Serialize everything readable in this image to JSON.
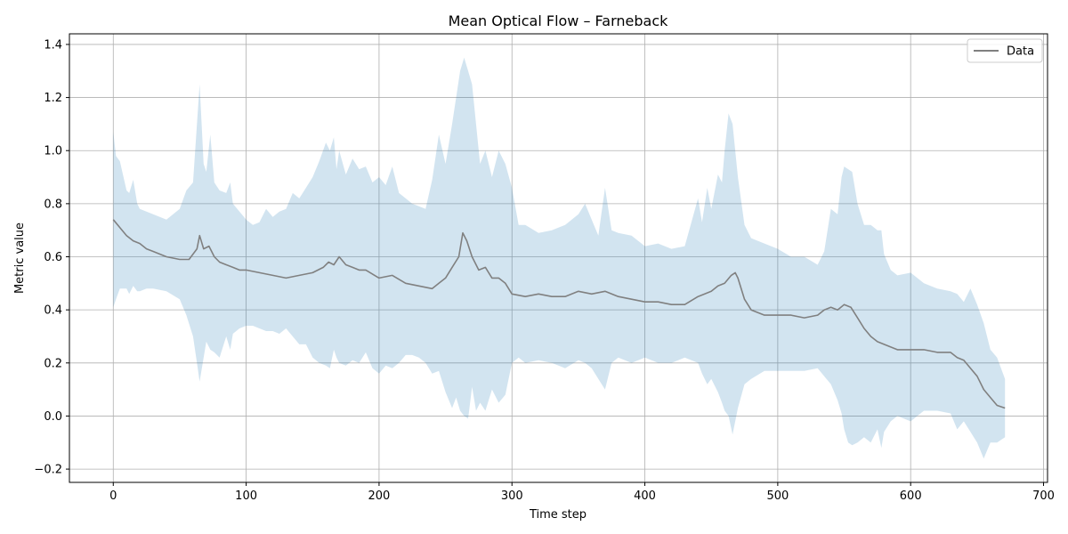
{
  "chart_data": {
    "type": "line",
    "title": "Mean Optical Flow – Farneback",
    "xlabel": "Time step",
    "ylabel": "Metric value",
    "xlim": [
      -33,
      703
    ],
    "ylim": [
      -0.25,
      1.44
    ],
    "xticks": [
      0,
      100,
      200,
      300,
      400,
      500,
      600,
      700
    ],
    "yticks": [
      -0.2,
      0.0,
      0.2,
      0.4,
      0.6,
      0.8,
      1.0,
      1.2,
      1.4
    ],
    "xtick_labels": [
      "0",
      "100",
      "200",
      "300",
      "400",
      "500",
      "600",
      "700"
    ],
    "ytick_labels": [
      "−0.2",
      "0.0",
      "0.2",
      "0.4",
      "0.6",
      "0.8",
      "1.0",
      "1.2",
      "1.4"
    ],
    "grid": true,
    "legend_position": "top-right",
    "series": [
      {
        "name": "Data",
        "color": "#808080",
        "x": [
          0,
          5,
          10,
          15,
          20,
          25,
          30,
          40,
          50,
          57,
          60,
          63,
          65,
          68,
          72,
          76,
          80,
          85,
          90,
          95,
          100,
          110,
          120,
          130,
          140,
          150,
          158,
          162,
          166,
          170,
          175,
          180,
          185,
          190,
          200,
          210,
          220,
          230,
          240,
          245,
          250,
          255,
          260,
          263,
          266,
          270,
          275,
          280,
          285,
          290,
          295,
          300,
          310,
          320,
          330,
          340,
          350,
          360,
          370,
          380,
          390,
          400,
          410,
          420,
          430,
          440,
          445,
          450,
          455,
          460,
          465,
          468,
          470,
          475,
          480,
          490,
          500,
          510,
          520,
          530,
          535,
          540,
          545,
          550,
          555,
          560,
          565,
          570,
          575,
          580,
          585,
          590,
          600,
          610,
          620,
          630,
          635,
          640,
          645,
          650,
          655,
          660,
          665,
          671
        ],
        "values": [
          0.74,
          0.71,
          0.68,
          0.66,
          0.65,
          0.63,
          0.62,
          0.6,
          0.59,
          0.59,
          0.61,
          0.63,
          0.68,
          0.63,
          0.64,
          0.6,
          0.58,
          0.57,
          0.56,
          0.55,
          0.55,
          0.54,
          0.53,
          0.52,
          0.53,
          0.54,
          0.56,
          0.58,
          0.57,
          0.6,
          0.57,
          0.56,
          0.55,
          0.55,
          0.52,
          0.53,
          0.5,
          0.49,
          0.48,
          0.5,
          0.52,
          0.56,
          0.6,
          0.69,
          0.66,
          0.6,
          0.55,
          0.56,
          0.52,
          0.52,
          0.5,
          0.46,
          0.45,
          0.46,
          0.45,
          0.45,
          0.47,
          0.46,
          0.47,
          0.45,
          0.44,
          0.43,
          0.43,
          0.42,
          0.42,
          0.45,
          0.46,
          0.47,
          0.49,
          0.5,
          0.53,
          0.54,
          0.52,
          0.44,
          0.4,
          0.38,
          0.38,
          0.38,
          0.37,
          0.38,
          0.4,
          0.41,
          0.4,
          0.42,
          0.41,
          0.37,
          0.33,
          0.3,
          0.28,
          0.27,
          0.26,
          0.25,
          0.25,
          0.25,
          0.24,
          0.24,
          0.22,
          0.21,
          0.18,
          0.15,
          0.1,
          0.07,
          0.04,
          0.03
        ]
      }
    ],
    "band": {
      "color": "#1f77b4",
      "opacity": 0.2,
      "x": [
        0,
        2,
        5,
        10,
        12,
        15,
        18,
        20,
        25,
        30,
        40,
        50,
        55,
        60,
        63,
        65,
        68,
        70,
        73,
        76,
        80,
        85,
        88,
        90,
        95,
        100,
        105,
        110,
        115,
        120,
        125,
        130,
        135,
        140,
        145,
        150,
        155,
        160,
        163,
        166,
        168,
        170,
        175,
        180,
        185,
        190,
        195,
        200,
        205,
        210,
        215,
        220,
        225,
        230,
        235,
        240,
        245,
        250,
        255,
        258,
        261,
        264,
        267,
        270,
        273,
        276,
        280,
        285,
        290,
        295,
        300,
        305,
        310,
        320,
        330,
        340,
        350,
        355,
        360,
        365,
        370,
        375,
        380,
        390,
        400,
        410,
        420,
        430,
        440,
        443,
        447,
        450,
        455,
        458,
        460,
        463,
        466,
        470,
        475,
        480,
        490,
        500,
        510,
        520,
        530,
        535,
        540,
        545,
        548,
        550,
        553,
        556,
        560,
        565,
        570,
        575,
        578,
        580,
        585,
        590,
        600,
        610,
        620,
        630,
        635,
        640,
        645,
        650,
        655,
        660,
        665,
        671
      ],
      "upper": [
        1.07,
        0.98,
        0.96,
        0.85,
        0.84,
        0.89,
        0.8,
        0.78,
        0.77,
        0.76,
        0.74,
        0.78,
        0.85,
        0.88,
        1.1,
        1.25,
        0.95,
        0.92,
        1.06,
        0.88,
        0.85,
        0.84,
        0.88,
        0.8,
        0.77,
        0.74,
        0.72,
        0.73,
        0.78,
        0.75,
        0.77,
        0.78,
        0.84,
        0.82,
        0.86,
        0.9,
        0.96,
        1.03,
        1.0,
        1.05,
        0.93,
        1.0,
        0.91,
        0.97,
        0.93,
        0.94,
        0.88,
        0.9,
        0.87,
        0.94,
        0.84,
        0.82,
        0.8,
        0.79,
        0.78,
        0.89,
        1.06,
        0.95,
        1.1,
        1.2,
        1.3,
        1.35,
        1.3,
        1.25,
        1.1,
        0.95,
        1.0,
        0.9,
        1.0,
        0.95,
        0.86,
        0.72,
        0.72,
        0.69,
        0.7,
        0.72,
        0.76,
        0.8,
        0.74,
        0.68,
        0.86,
        0.7,
        0.69,
        0.68,
        0.64,
        0.65,
        0.63,
        0.64,
        0.82,
        0.73,
        0.86,
        0.78,
        0.91,
        0.88,
        1.0,
        1.14,
        1.1,
        0.9,
        0.72,
        0.67,
        0.65,
        0.63,
        0.6,
        0.6,
        0.57,
        0.62,
        0.78,
        0.76,
        0.9,
        0.94,
        0.93,
        0.92,
        0.8,
        0.72,
        0.72,
        0.7,
        0.7,
        0.61,
        0.55,
        0.53,
        0.54,
        0.5,
        0.48,
        0.47,
        0.46,
        0.43,
        0.48,
        0.42,
        0.35,
        0.25,
        0.22,
        0.14
      ],
      "lower": [
        0.41,
        0.44,
        0.48,
        0.48,
        0.46,
        0.49,
        0.47,
        0.47,
        0.48,
        0.48,
        0.47,
        0.44,
        0.38,
        0.3,
        0.2,
        0.13,
        0.22,
        0.28,
        0.25,
        0.24,
        0.22,
        0.3,
        0.25,
        0.31,
        0.33,
        0.34,
        0.34,
        0.33,
        0.32,
        0.32,
        0.31,
        0.33,
        0.3,
        0.27,
        0.27,
        0.22,
        0.2,
        0.19,
        0.18,
        0.25,
        0.22,
        0.2,
        0.19,
        0.21,
        0.2,
        0.24,
        0.18,
        0.16,
        0.19,
        0.18,
        0.2,
        0.23,
        0.23,
        0.22,
        0.2,
        0.16,
        0.17,
        0.09,
        0.03,
        0.07,
        0.02,
        0.0,
        -0.01,
        0.11,
        0.02,
        0.05,
        0.02,
        0.1,
        0.05,
        0.08,
        0.2,
        0.22,
        0.2,
        0.21,
        0.2,
        0.18,
        0.21,
        0.2,
        0.18,
        0.14,
        0.1,
        0.2,
        0.22,
        0.2,
        0.22,
        0.2,
        0.2,
        0.22,
        0.2,
        0.16,
        0.12,
        0.14,
        0.09,
        0.05,
        0.02,
        0.0,
        -0.07,
        0.03,
        0.12,
        0.14,
        0.17,
        0.17,
        0.17,
        0.17,
        0.18,
        0.15,
        0.12,
        0.06,
        0.01,
        -0.05,
        -0.1,
        -0.11,
        -0.1,
        -0.08,
        -0.1,
        -0.05,
        -0.12,
        -0.06,
        -0.02,
        0.0,
        -0.02,
        0.02,
        0.02,
        0.01,
        -0.05,
        -0.02,
        -0.06,
        -0.1,
        -0.16,
        -0.1,
        -0.1,
        -0.08
      ]
    }
  }
}
